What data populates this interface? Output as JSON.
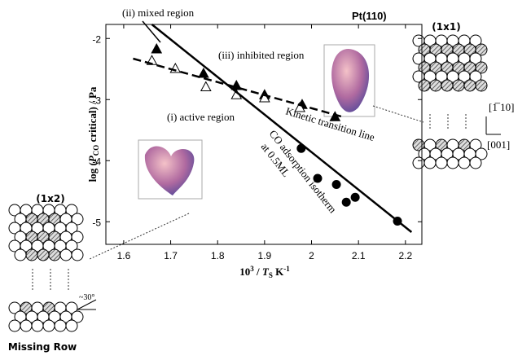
{
  "chart_data": {
    "type": "scatter",
    "title": "Pt(110)",
    "xlabel": [
      "10",
      "3",
      " / ",
      "T",
      "S",
      "  K",
      "-1"
    ],
    "ylabel": [
      "log (",
      "P",
      "CO",
      " critical) / Pa"
    ],
    "xlim": [
      1.562,
      2.235
    ],
    "ylim": [
      -5.37,
      -1.77
    ],
    "xticks": [
      1.6,
      1.7,
      1.8,
      1.9,
      2,
      2.1,
      2.2
    ],
    "yticks": [
      -2,
      -3,
      -4,
      -5
    ],
    "series": [
      {
        "kind": "marker",
        "marker": "circle",
        "filled": true,
        "color": "#000000",
        "x": [
          1.978,
          2.013,
          2.053,
          2.074,
          2.093,
          2.183
        ],
        "values": [
          -3.8,
          -4.29,
          -4.39,
          -4.68,
          -4.6,
          -4.99
        ]
      },
      {
        "kind": "marker",
        "marker": "triangle",
        "filled": true,
        "color": "#000000",
        "x": [
          1.67,
          1.77,
          1.84,
          1.9,
          1.98,
          2.05
        ],
        "values": [
          -2.17,
          -2.57,
          -2.77,
          -2.92,
          -3.08,
          -3.28
        ]
      },
      {
        "kind": "marker",
        "marker": "triangle",
        "filled": false,
        "color": "#000000",
        "x": [
          1.66,
          1.71,
          1.775,
          1.84,
          1.9,
          1.975
        ],
        "values": [
          -2.36,
          -2.49,
          -2.79,
          -2.92,
          -2.97,
          -3.13
        ]
      },
      {
        "kind": "line",
        "style": "solid",
        "color": "#000000",
        "x": [
          1.66,
          2.213
        ],
        "values": [
          -1.77,
          -5.17
        ]
      },
      {
        "kind": "line",
        "style": "dashed",
        "color": "#000000",
        "x": [
          1.62,
          2.065
        ],
        "values": [
          -2.33,
          -3.28
        ]
      }
    ],
    "annotations": [
      "(ii) mixed region",
      "(iii) inhibited region",
      "(i) active region",
      "Kinetic transition line",
      "CO adsorption isotherm",
      "at 0.5ML"
    ]
  },
  "diagrams": {
    "top_right": "(1x1)",
    "left": "(1x2)",
    "missing_row": "Missing Row",
    "dir_a": "[1̅ 10]",
    "dir_b": "[001]",
    "angle": "~30°"
  }
}
